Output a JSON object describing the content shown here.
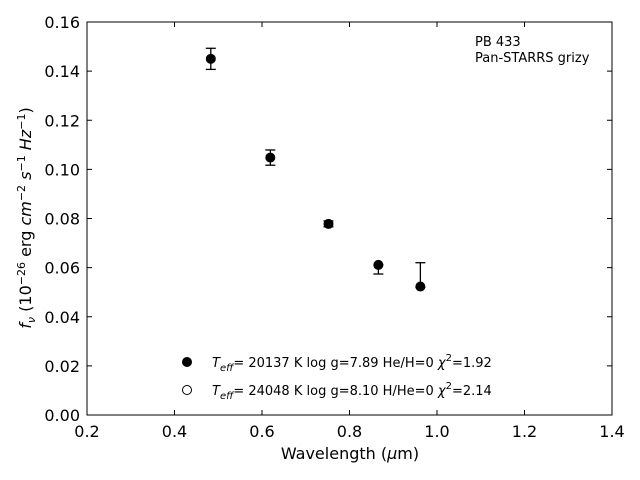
{
  "chart_data": {
    "type": "scatter",
    "title": "",
    "xlabel": "Wavelength (μm)",
    "ylabel": "f_ν (10^-26 erg cm^-2 s^-1 Hz^-1)",
    "xlim": [
      0.2,
      1.4
    ],
    "ylim": [
      0.0,
      0.16
    ],
    "x_ticks": [
      "0.2",
      "0.4",
      "0.6",
      "0.8",
      "1.0",
      "1.2",
      "1.4"
    ],
    "y_ticks": [
      "0.00",
      "0.02",
      "0.04",
      "0.06",
      "0.08",
      "0.10",
      "0.12",
      "0.14",
      "0.16"
    ],
    "grid": false,
    "annotation": [
      "PB 433",
      "Pan-STARRS grizy"
    ],
    "observed": {
      "x": [
        0.483,
        0.619,
        0.752,
        0.866,
        0.962
      ],
      "y": [
        0.145,
        0.1048,
        0.0778,
        0.0611,
        0.0523
      ],
      "err_low": [
        0.0043,
        0.0031,
        0.0012,
        0.0037,
        0.0003
      ],
      "err_high": [
        0.0043,
        0.0031,
        0.0012,
        0.0,
        0.0097
      ]
    },
    "models": [
      {
        "marker": "filled",
        "teff": "20137",
        "logg": "7.89",
        "comp": "He/H=0",
        "chi2": "1.92",
        "x": [
          0.483,
          0.619,
          0.752,
          0.866,
          0.962
        ],
        "y": [
          0.145,
          0.1048,
          0.0778,
          0.0611,
          0.0523
        ]
      },
      {
        "marker": "open",
        "teff": "24048",
        "logg": "8.10",
        "comp": "H/He=0",
        "chi2": "2.14",
        "x": [],
        "y": []
      }
    ],
    "legend_position": "lower-center"
  }
}
